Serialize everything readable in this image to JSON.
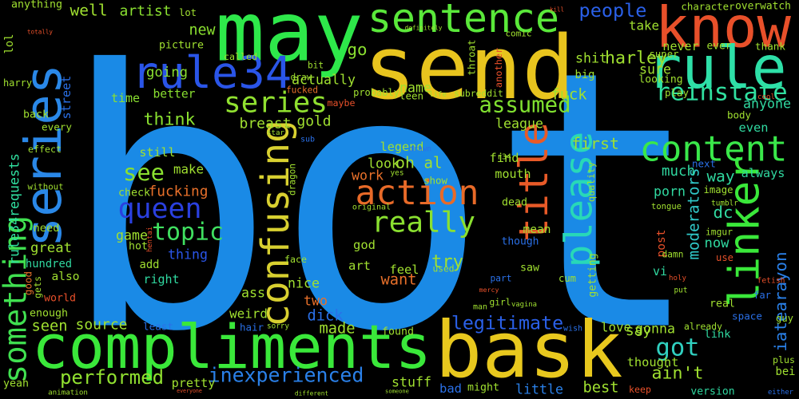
{
  "words": [
    {
      "text": "bot",
      "color": "#1a8ae6"
    },
    {
      "text": "may",
      "color": "#2ee84a"
    },
    {
      "text": "send",
      "color": "#e8c41e"
    },
    {
      "text": "know",
      "color": "#e8502a"
    },
    {
      "text": "rule",
      "color": "#2ee0a8"
    },
    {
      "text": "sentence",
      "color": "#5ae83a"
    },
    {
      "text": "rule34",
      "color": "#2a55e8"
    },
    {
      "text": "series",
      "color": "#2a88e8"
    },
    {
      "text": "series",
      "color": "#90e030"
    },
    {
      "text": "compliments",
      "color": "#3ae83a"
    },
    {
      "text": "bask",
      "color": "#e8c81e"
    },
    {
      "text": "confusing",
      "color": "#d8d030"
    },
    {
      "text": "title",
      "color": "#e85a28"
    },
    {
      "text": "please",
      "color": "#28d8b8"
    },
    {
      "text": "linker",
      "color": "#3ae83a"
    },
    {
      "text": "content",
      "color": "#3ae84a"
    },
    {
      "text": "reinstate",
      "color": "#30e0a0"
    },
    {
      "text": "action",
      "color": "#e86a28"
    },
    {
      "text": "really",
      "color": "#8ae030"
    },
    {
      "text": "queen",
      "color": "#2a40e0"
    },
    {
      "text": "see",
      "color": "#8ae030"
    },
    {
      "text": "topic",
      "color": "#40e060"
    },
    {
      "text": "something",
      "color": "#40e050"
    },
    {
      "text": "rule34requests",
      "color": "#30e0a0"
    },
    {
      "text": "got",
      "color": "#30d0c0"
    },
    {
      "text": "legitimate",
      "color": "#2a60e8"
    },
    {
      "text": "inexperienced",
      "color": "#2a80e8"
    },
    {
      "text": "performed",
      "color": "#90e030"
    },
    {
      "text": "ain't",
      "color": "#a0e030"
    },
    {
      "text": "moderators",
      "color": "#30c8c8"
    },
    {
      "text": "iatearayon",
      "color": "#2a80e8"
    },
    {
      "text": "assumed",
      "color": "#80e030"
    },
    {
      "text": "people",
      "color": "#2a60e8"
    },
    {
      "text": "think",
      "color": "#8ae030"
    },
    {
      "text": "harley",
      "color": "#a0e030"
    },
    {
      "text": "try",
      "color": "#a0e030"
    },
    {
      "text": "artist",
      "color": "#8ae030"
    },
    {
      "text": "well",
      "color": "#a0e030"
    },
    {
      "text": "new",
      "color": "#8ae030"
    },
    {
      "text": "going",
      "color": "#8ae030"
    },
    {
      "text": "picture",
      "color": "#a0e030"
    },
    {
      "text": "actually",
      "color": "#a0e030"
    },
    {
      "text": "name",
      "color": "#a0e030"
    },
    {
      "text": "fuck",
      "color": "#a0e030"
    },
    {
      "text": "shit",
      "color": "#a0e030"
    },
    {
      "text": "go",
      "color": "#8ae030"
    },
    {
      "text": "take",
      "color": "#a0e030"
    },
    {
      "text": "never",
      "color": "#a0e030"
    },
    {
      "text": "sure",
      "color": "#a0e030"
    },
    {
      "text": "time",
      "color": "#8ae030"
    },
    {
      "text": "better",
      "color": "#8ae030"
    },
    {
      "text": "breast",
      "color": "#a0e030"
    },
    {
      "text": "gold",
      "color": "#a0e030"
    },
    {
      "text": "league",
      "color": "#a0e030"
    },
    {
      "text": "find",
      "color": "#a0e030"
    },
    {
      "text": "first",
      "color": "#a0e030"
    },
    {
      "text": "mouth",
      "color": "#a0e030"
    },
    {
      "text": "anyone",
      "color": "#30d8a0"
    },
    {
      "text": "even",
      "color": "#30d8a0"
    },
    {
      "text": "always",
      "color": "#30d8a0"
    },
    {
      "text": "way",
      "color": "#30d8a0"
    },
    {
      "text": "much",
      "color": "#30d8a0"
    },
    {
      "text": "porn",
      "color": "#30d8a0"
    },
    {
      "text": "dc",
      "color": "#30d8a0"
    },
    {
      "text": "now",
      "color": "#30d8a0"
    },
    {
      "text": "vi",
      "color": "#30d8a0"
    },
    {
      "text": "post",
      "color": "#e8502a"
    },
    {
      "text": "say",
      "color": "#a0e030"
    },
    {
      "text": "link",
      "color": "#30d8a0"
    },
    {
      "text": "love",
      "color": "#a0e030"
    },
    {
      "text": "gonna",
      "color": "#a0e030"
    },
    {
      "text": "thought",
      "color": "#a0e030"
    },
    {
      "text": "best",
      "color": "#a0e030"
    },
    {
      "text": "version",
      "color": "#30d8a0"
    },
    {
      "text": "little",
      "color": "#2a80e8"
    },
    {
      "text": "stuff",
      "color": "#a0e030"
    },
    {
      "text": "pretty",
      "color": "#a0e030"
    },
    {
      "text": "made",
      "color": "#a0e030"
    },
    {
      "text": "dick",
      "color": "#2a70e8"
    },
    {
      "text": "two",
      "color": "#e8702a"
    },
    {
      "text": "nice",
      "color": "#a0e030"
    },
    {
      "text": "ass",
      "color": "#a0e030"
    },
    {
      "text": "weird",
      "color": "#a0e030"
    },
    {
      "text": "source",
      "color": "#a0e030"
    },
    {
      "text": "seen",
      "color": "#a0e030"
    },
    {
      "text": "enough",
      "color": "#a0e030"
    },
    {
      "text": "also",
      "color": "#a0e030"
    },
    {
      "text": "hundred",
      "color": "#30d8a0"
    },
    {
      "text": "great",
      "color": "#a0e030"
    },
    {
      "text": "need",
      "color": "#a0e030"
    },
    {
      "text": "game",
      "color": "#a0e030"
    },
    {
      "text": "add",
      "color": "#a0e030"
    },
    {
      "text": "right",
      "color": "#30d8a0"
    },
    {
      "text": "thing",
      "color": "#2a55e8"
    },
    {
      "text": "make",
      "color": "#a0e030"
    },
    {
      "text": "still",
      "color": "#a0e030"
    },
    {
      "text": "fucking",
      "color": "#e8702a"
    },
    {
      "text": "art",
      "color": "#a0e030"
    },
    {
      "text": "want",
      "color": "#e8702a"
    },
    {
      "text": "feel",
      "color": "#a0e030"
    },
    {
      "text": "god",
      "color": "#a0e030"
    },
    {
      "text": "look",
      "color": "#a0e030"
    },
    {
      "text": "oh",
      "color": "#a0e030"
    },
    {
      "text": "al",
      "color": "#a0e030"
    },
    {
      "text": "legend",
      "color": "#a0e030"
    },
    {
      "text": "work",
      "color": "#e8702a"
    },
    {
      "text": "show",
      "color": "#a0e030"
    },
    {
      "text": "found",
      "color": "#a0e030"
    },
    {
      "text": "probably",
      "color": "#a0e030"
    },
    {
      "text": "subreddit",
      "color": "#a0e030"
    },
    {
      "text": "teen",
      "color": "#a0e030"
    },
    {
      "text": "fucked",
      "color": "#e8702a"
    },
    {
      "text": "called",
      "color": "#a0e030"
    },
    {
      "text": "bit",
      "color": "#a0e030"
    },
    {
      "text": "draw",
      "color": "#a0e030"
    },
    {
      "text": "comic",
      "color": "#a0e030"
    },
    {
      "text": "kill",
      "color": "#e8502a"
    },
    {
      "text": "character",
      "color": "#a0e030"
    },
    {
      "text": "overwatch",
      "color": "#a0e030"
    },
    {
      "text": "thank",
      "color": "#a0e030"
    },
    {
      "text": "super",
      "color": "#a0e030"
    },
    {
      "text": "ever",
      "color": "#a0e030"
    },
    {
      "text": "play",
      "color": "#a0e030"
    },
    {
      "text": "looking",
      "color": "#a0e030"
    },
    {
      "text": "big",
      "color": "#a0e030"
    },
    {
      "text": "throat",
      "color": "#a0e030"
    },
    {
      "text": "another",
      "color": "#e8502a"
    },
    {
      "text": "definitely",
      "color": "#a0e030"
    },
    {
      "text": "anything",
      "color": "#a0e030"
    },
    {
      "text": "lol",
      "color": "#a0e030"
    },
    {
      "text": "harry",
      "color": "#a0e030"
    },
    {
      "text": "back",
      "color": "#a0e030"
    },
    {
      "text": "every",
      "color": "#a0e030"
    },
    {
      "text": "effect",
      "color": "#a0e030"
    },
    {
      "text": "street",
      "color": "#2a70e8"
    },
    {
      "text": "check",
      "color": "#a0e030"
    },
    {
      "text": "hot",
      "color": "#a0e030"
    },
    {
      "text": "gets",
      "color": "#a0e030"
    },
    {
      "text": "world",
      "color": "#e8502a"
    },
    {
      "text": "good",
      "color": "#e8702a"
    },
    {
      "text": "yeah",
      "color": "#a0e030"
    },
    {
      "text": "animation",
      "color": "#a0e030"
    },
    {
      "text": "everyone",
      "color": "#e8502a"
    },
    {
      "text": "different",
      "color": "#a0e030"
    },
    {
      "text": "someone",
      "color": "#a0e030"
    },
    {
      "text": "bad",
      "color": "#2a70e8"
    },
    {
      "text": "might",
      "color": "#a0e030"
    },
    {
      "text": "keep",
      "color": "#e8502a"
    },
    {
      "text": "either",
      "color": "#2a70e8"
    },
    {
      "text": "plus",
      "color": "#a0e030"
    },
    {
      "text": "bei",
      "color": "#a0e030"
    },
    {
      "text": "guy",
      "color": "#a0e030"
    },
    {
      "text": "space",
      "color": "#2a70e8"
    },
    {
      "text": "fetish",
      "color": "#e8502a"
    },
    {
      "text": "far",
      "color": "#2a70e8"
    },
    {
      "text": "real",
      "color": "#a0e030"
    },
    {
      "text": "already",
      "color": "#a0e030"
    },
    {
      "text": "use",
      "color": "#e8502a"
    },
    {
      "text": "imgur",
      "color": "#a0e030"
    },
    {
      "text": "tumblr",
      "color": "#a0e030"
    },
    {
      "text": "image",
      "color": "#a0e030"
    },
    {
      "text": "next",
      "color": "#2a70e8"
    },
    {
      "text": "body",
      "color": "#a0e030"
    },
    {
      "text": "cool",
      "color": "#e8502a"
    },
    {
      "text": "maybe",
      "color": "#e8502a"
    },
    {
      "text": "star",
      "color": "#a0e030"
    },
    {
      "text": "sub",
      "color": "#2a70e8"
    },
    {
      "text": "drawn",
      "color": "#2a70e8"
    },
    {
      "text": "dragon",
      "color": "#a0e030"
    },
    {
      "text": "original",
      "color": "#a0e030"
    },
    {
      "text": "yes",
      "color": "#a0e030"
    },
    {
      "text": "used",
      "color": "#a0e030"
    },
    {
      "text": "r34",
      "color": "#a0e030"
    },
    {
      "text": "dead",
      "color": "#a0e030"
    },
    {
      "text": "mean",
      "color": "#a0e030"
    },
    {
      "text": "though",
      "color": "#2a70e8"
    },
    {
      "text": "saw",
      "color": "#a0e030"
    },
    {
      "text": "part",
      "color": "#2a70e8"
    },
    {
      "text": "mercy",
      "color": "#e8502a"
    },
    {
      "text": "girl",
      "color": "#a0e030"
    },
    {
      "text": "man",
      "color": "#a0e030"
    },
    {
      "text": "vagina",
      "color": "#a0e030"
    },
    {
      "text": "getting",
      "color": "#a0e030"
    },
    {
      "text": "cum",
      "color": "#a0e030"
    },
    {
      "text": "quality",
      "color": "#a0e030"
    },
    {
      "text": "hentai",
      "color": "#e8502a"
    },
    {
      "text": "face",
      "color": "#a0e030"
    },
    {
      "text": "hair",
      "color": "#2a70e8"
    },
    {
      "text": "sorry",
      "color": "#a0e030"
    },
    {
      "text": "least",
      "color": "#2a70e8"
    },
    {
      "text": "without",
      "color": "#a0e030"
    },
    {
      "text": "totally",
      "color": "#e8502a"
    },
    {
      "text": "holy",
      "color": "#e8502a"
    },
    {
      "text": "damn",
      "color": "#a0e030"
    },
    {
      "text": "put",
      "color": "#a0e030"
    },
    {
      "text": "wish",
      "color": "#2a70e8"
    },
    {
      "text": "tongue",
      "color": "#a0e030"
    },
    {
      "text": "lot",
      "color": "#a0e030"
    },
    {
      "text": "life",
      "color": "#a0e030"
    }
  ]
}
